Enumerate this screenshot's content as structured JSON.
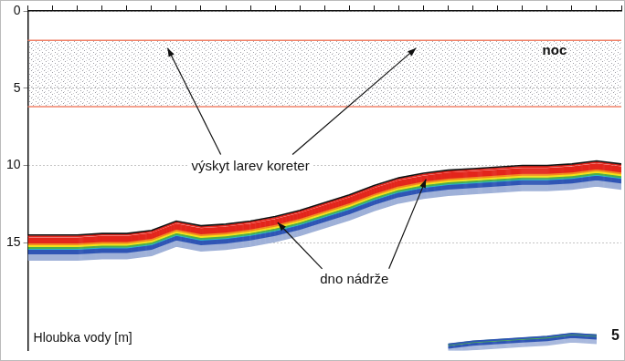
{
  "chart_data": {
    "type": "line",
    "ylabel": "Hloubka vody [m]",
    "figure_number": "5",
    "annotations": [
      "noc",
      "výskyt larev koreter",
      "dno nádrže"
    ],
    "categories": [
      null,
      null,
      null,
      null,
      null,
      null,
      null,
      null,
      null,
      null,
      null,
      null,
      null,
      null,
      null,
      null,
      null,
      null,
      null,
      null,
      null,
      null,
      null,
      null,
      null
    ],
    "series": [
      {
        "color": "#f0826a",
        "values": [
          1.9,
          1.9,
          1.9,
          1.9,
          1.9,
          1.9,
          1.9,
          1.9,
          1.9,
          1.9,
          1.9,
          1.9,
          1.9,
          1.9,
          1.9,
          1.9,
          1.9,
          1.9,
          1.9,
          1.9,
          1.9,
          1.9,
          1.9,
          1.9,
          1.9
        ]
      },
      {
        "color": "#f0826a",
        "values": [
          6.2,
          6.2,
          6.2,
          6.2,
          6.2,
          6.2,
          6.2,
          6.2,
          6.2,
          6.2,
          6.2,
          6.2,
          6.2,
          6.2,
          6.2,
          6.2,
          6.2,
          6.2,
          6.2,
          6.2,
          6.2,
          6.2,
          6.2,
          6.2,
          6.2
        ]
      },
      {
        "color": "#e3261c",
        "values": [
          14.6,
          14.6,
          14.6,
          14.5,
          14.5,
          14.3,
          13.7,
          14.0,
          13.9,
          13.7,
          13.4,
          13.0,
          12.5,
          12.0,
          11.4,
          10.9,
          10.6,
          10.4,
          10.3,
          10.2,
          10.1,
          10.1,
          10.0,
          9.8,
          10.0
        ]
      },
      {
        "color": "#2f55b5",
        "values": [
          null,
          null,
          null,
          null,
          null,
          null,
          null,
          null,
          null,
          null,
          null,
          null,
          null,
          null,
          null,
          null,
          null,
          21.6,
          21.4,
          21.3,
          21.2,
          21.1,
          20.9,
          21.0,
          null
        ]
      }
    ],
    "ylim": [
      0,
      22
    ],
    "yticks": [
      0,
      5,
      10,
      15
    ],
    "grid": true,
    "tick_labels": "y"
  }
}
